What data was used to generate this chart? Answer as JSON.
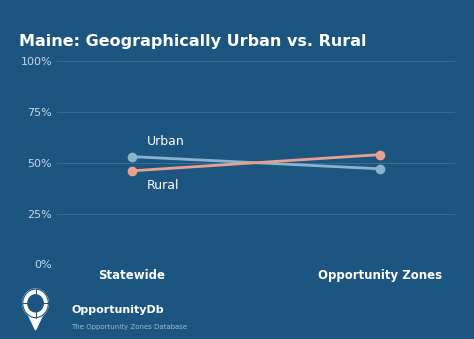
{
  "title": "Maine: Geographically Urban vs. Rural",
  "background_color": "#1c5580",
  "plot_bg_color": "#1c5580",
  "title_color": "#ffffff",
  "tick_color": "#c8d8e8",
  "grid_color": "#4a7fa8",
  "x_labels": [
    "Statewide",
    "Opportunity Zones"
  ],
  "x_positions": [
    0,
    1
  ],
  "urban_values": [
    53,
    47
  ],
  "rural_values": [
    46,
    54
  ],
  "urban_color": "#8ab4cc",
  "rural_color": "#e8a090",
  "label_urban": "Urban",
  "label_rural": "Rural",
  "yticks": [
    0,
    25,
    50,
    75,
    100
  ],
  "ytick_labels": [
    "0%",
    "25%",
    "50%",
    "75%",
    "100%"
  ],
  "marker_size": 7,
  "line_width": 2.0,
  "title_fontsize": 11.5,
  "tick_fontsize": 8,
  "label_fontsize": 9,
  "xlabel_fontsize": 8.5,
  "logo_text": "OpportunityDb",
  "logo_subtext": "The Opportunity Zones Database"
}
